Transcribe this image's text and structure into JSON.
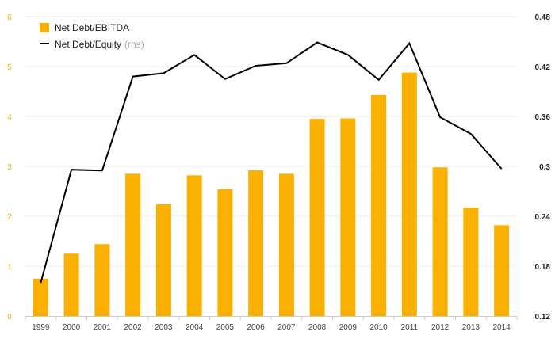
{
  "chart_data": {
    "type": "bar+line",
    "categories": [
      "1999",
      "2000",
      "2001",
      "2002",
      "2003",
      "2004",
      "2005",
      "2006",
      "2007",
      "2008",
      "2009",
      "2010",
      "2011",
      "2012",
      "2013",
      "2014"
    ],
    "series": [
      {
        "name": "Net Debt/EBITDA",
        "type": "bar",
        "axis": "left",
        "color": "#f9b000",
        "values": [
          0.75,
          1.25,
          1.44,
          2.85,
          2.24,
          2.82,
          2.54,
          2.92,
          2.85,
          3.95,
          3.96,
          4.43,
          4.88,
          2.98,
          2.17,
          1.82
        ]
      },
      {
        "name": "Net Debt/Equity",
        "name_suffix": "(rhs)",
        "type": "line",
        "axis": "right",
        "color": "#000000",
        "values": [
          0.16,
          0.296,
          0.295,
          0.408,
          0.412,
          0.434,
          0.405,
          0.421,
          0.424,
          0.449,
          0.434,
          0.404,
          0.448,
          0.359,
          0.339,
          0.297
        ]
      }
    ],
    "y_left": {
      "ylim": [
        0,
        6
      ],
      "ticks": [
        "0",
        "1",
        "2",
        "3",
        "4",
        "5",
        "6"
      ],
      "color": "#f5b000"
    },
    "y_right": {
      "ylim": [
        0.12,
        0.48
      ],
      "ticks": [
        "0.12",
        "0.18",
        "0.24",
        "0.3",
        "0.36",
        "0.42",
        "0.48"
      ],
      "color": "#222222"
    },
    "legend": {
      "placement": "top-left"
    },
    "grid": true,
    "title": "",
    "xlabel": "",
    "ylabel": ""
  }
}
